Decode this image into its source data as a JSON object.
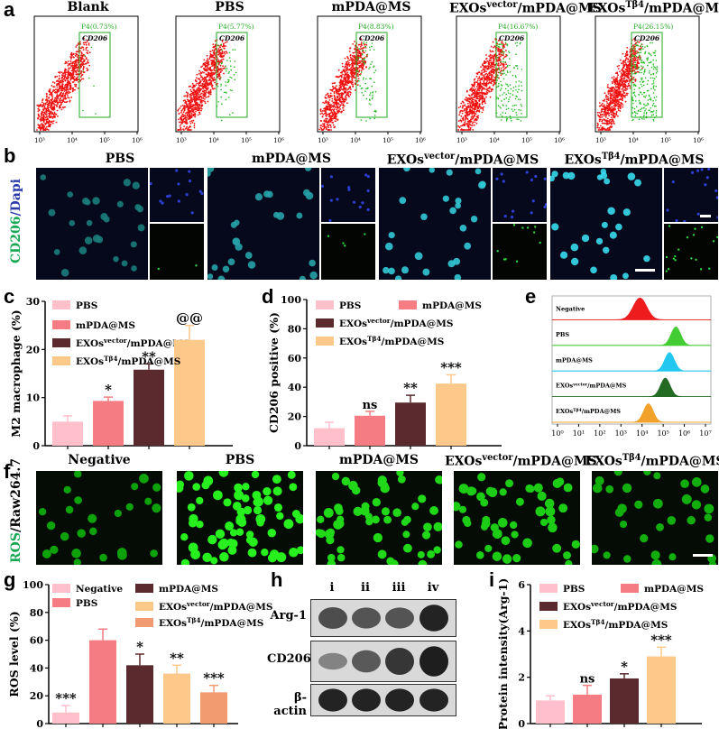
{
  "panels": {
    "a": "a",
    "b": "b",
    "c": "c",
    "d": "d",
    "e": "e",
    "f": "f",
    "g": "g",
    "h": "h",
    "i": "i"
  },
  "flow": {
    "gate_label": "CD206",
    "x_ticks": [
      "10³",
      "10⁴",
      "10⁵",
      "10⁶"
    ],
    "plots": [
      {
        "title": "Blank",
        "gate": "P4(0.73%)"
      },
      {
        "title": "PBS",
        "gate": "P4(5.77%)"
      },
      {
        "title": "mPDA@MS",
        "gate": "P4(8.83%)"
      },
      {
        "title": "EXOsvector/mPDA@MS",
        "gate": "P4(16.67%)"
      },
      {
        "title": "EXOsTβ4/mPDA@MS",
        "gate": "P4(26.15%)"
      }
    ]
  },
  "micro": {
    "ylabel_a": "CD206",
    "ylabel_b": "/Dapi",
    "titles": [
      "PBS",
      "mPDA@MS",
      "EXOsvector/mPDA@MS",
      "EXOsTβ4/mPDA@MS"
    ]
  },
  "chart_data": [
    {
      "panel": "c",
      "type": "bar",
      "ylabel": "M2 macrophage (%)",
      "ylim": [
        0,
        30
      ],
      "yticks": [
        0,
        10,
        20,
        30
      ],
      "series": [
        {
          "name": "PBS",
          "value": 5,
          "err": 1.2,
          "color": "#ffc0cc",
          "sig": ""
        },
        {
          "name": "mPDA@MS",
          "value": 9.3,
          "err": 0.8,
          "color": "#f47c82",
          "sig": "*"
        },
        {
          "name": "EXOsvector/mPDA@MS",
          "value": 15.8,
          "err": 1.2,
          "color": "#5b2a2e",
          "sig": "**"
        },
        {
          "name": "EXOsTβ4/mPDA@MS",
          "value": 22,
          "err": 3,
          "color": "#fcc98a",
          "sig": "@@"
        }
      ]
    },
    {
      "panel": "d",
      "type": "bar",
      "ylabel": "CD206 positive (%)",
      "ylim": [
        0,
        100
      ],
      "yticks": [
        0,
        20,
        40,
        60,
        80,
        100
      ],
      "series": [
        {
          "name": "PBS",
          "value": 12,
          "err": 4,
          "color": "#ffc0cc",
          "sig": ""
        },
        {
          "name": "mPDA@MS",
          "value": 20.5,
          "err": 3,
          "color": "#f47c82",
          "sig": "ns"
        },
        {
          "name": "EXOsvector/mPDA@MS",
          "value": 29.5,
          "err": 5,
          "color": "#5b2a2e",
          "sig": "**"
        },
        {
          "name": "EXOsTβ4/mPDA@MS",
          "value": 42.5,
          "err": 6,
          "color": "#fcc98a",
          "sig": "***"
        }
      ]
    },
    {
      "panel": "e",
      "type": "area",
      "x_ticks": [
        "10⁰",
        "10¹",
        "10²",
        "10³",
        "10⁴",
        "10⁵",
        "10⁶",
        "10⁷"
      ],
      "series": [
        {
          "name": "Negative",
          "peak_log10": 3.9,
          "color": "#ee1c1c"
        },
        {
          "name": "PBS",
          "peak_log10": 5.6,
          "color": "#44cc33"
        },
        {
          "name": "mPDA@MS",
          "peak_log10": 5.3,
          "color": "#22c8f0"
        },
        {
          "name": "EXOsvector/mPDA@MS",
          "peak_log10": 5.1,
          "color": "#236b23"
        },
        {
          "name": "EXOsTβ4/mPDA@MS",
          "peak_log10": 4.3,
          "color": "#f2a12a"
        }
      ]
    },
    {
      "panel": "g",
      "type": "bar",
      "ylabel": "ROS level (%)",
      "ylim": [
        0,
        100
      ],
      "yticks": [
        0,
        20,
        40,
        60,
        80,
        100
      ],
      "series": [
        {
          "name": "Negative",
          "value": 8,
          "err": 5,
          "color": "#ffc0cc",
          "sig": "***"
        },
        {
          "name": "PBS",
          "value": 60,
          "err": 8,
          "color": "#f47c82",
          "sig": ""
        },
        {
          "name": "mPDA@MS",
          "value": 42,
          "err": 8,
          "color": "#5b2a2e",
          "sig": "*"
        },
        {
          "name": "EXOsvector/mPDA@MS",
          "value": 36,
          "err": 6,
          "color": "#fcc98a",
          "sig": "**"
        },
        {
          "name": "EXOsTβ4/mPDA@MS",
          "value": 22.5,
          "err": 5,
          "color": "#f29a70",
          "sig": "***"
        }
      ]
    },
    {
      "panel": "i",
      "type": "bar",
      "ylabel": "Protein intensity(Arg-1)",
      "ylim": [
        0,
        6
      ],
      "yticks": [
        0,
        2,
        4,
        6
      ],
      "series": [
        {
          "name": "PBS",
          "value": 1,
          "err": 0.2,
          "color": "#ffc0cc",
          "sig": ""
        },
        {
          "name": "mPDA@MS",
          "value": 1.25,
          "err": 0.4,
          "color": "#f47c82",
          "sig": "ns"
        },
        {
          "name": "EXOsvector/mPDA@MS",
          "value": 1.95,
          "err": 0.2,
          "color": "#5b2a2e",
          "sig": "*"
        },
        {
          "name": "EXOsTβ4/mPDA@MS",
          "value": 2.9,
          "err": 0.4,
          "color": "#fcc98a",
          "sig": "***"
        }
      ]
    }
  ],
  "ros": {
    "ylabel_a": "ROS",
    "ylabel_b": "/Raw264.7",
    "titles": [
      "Negative",
      "PBS",
      "mPDA@MS",
      "EXOsvector/mPDA@MS",
      "EXOsTβ4/mPDA@MS"
    ]
  },
  "blot": {
    "lanes": [
      "i",
      "ii",
      "iii",
      "iv"
    ],
    "rows": [
      "Arg-1",
      "CD206",
      "β-actin"
    ]
  }
}
